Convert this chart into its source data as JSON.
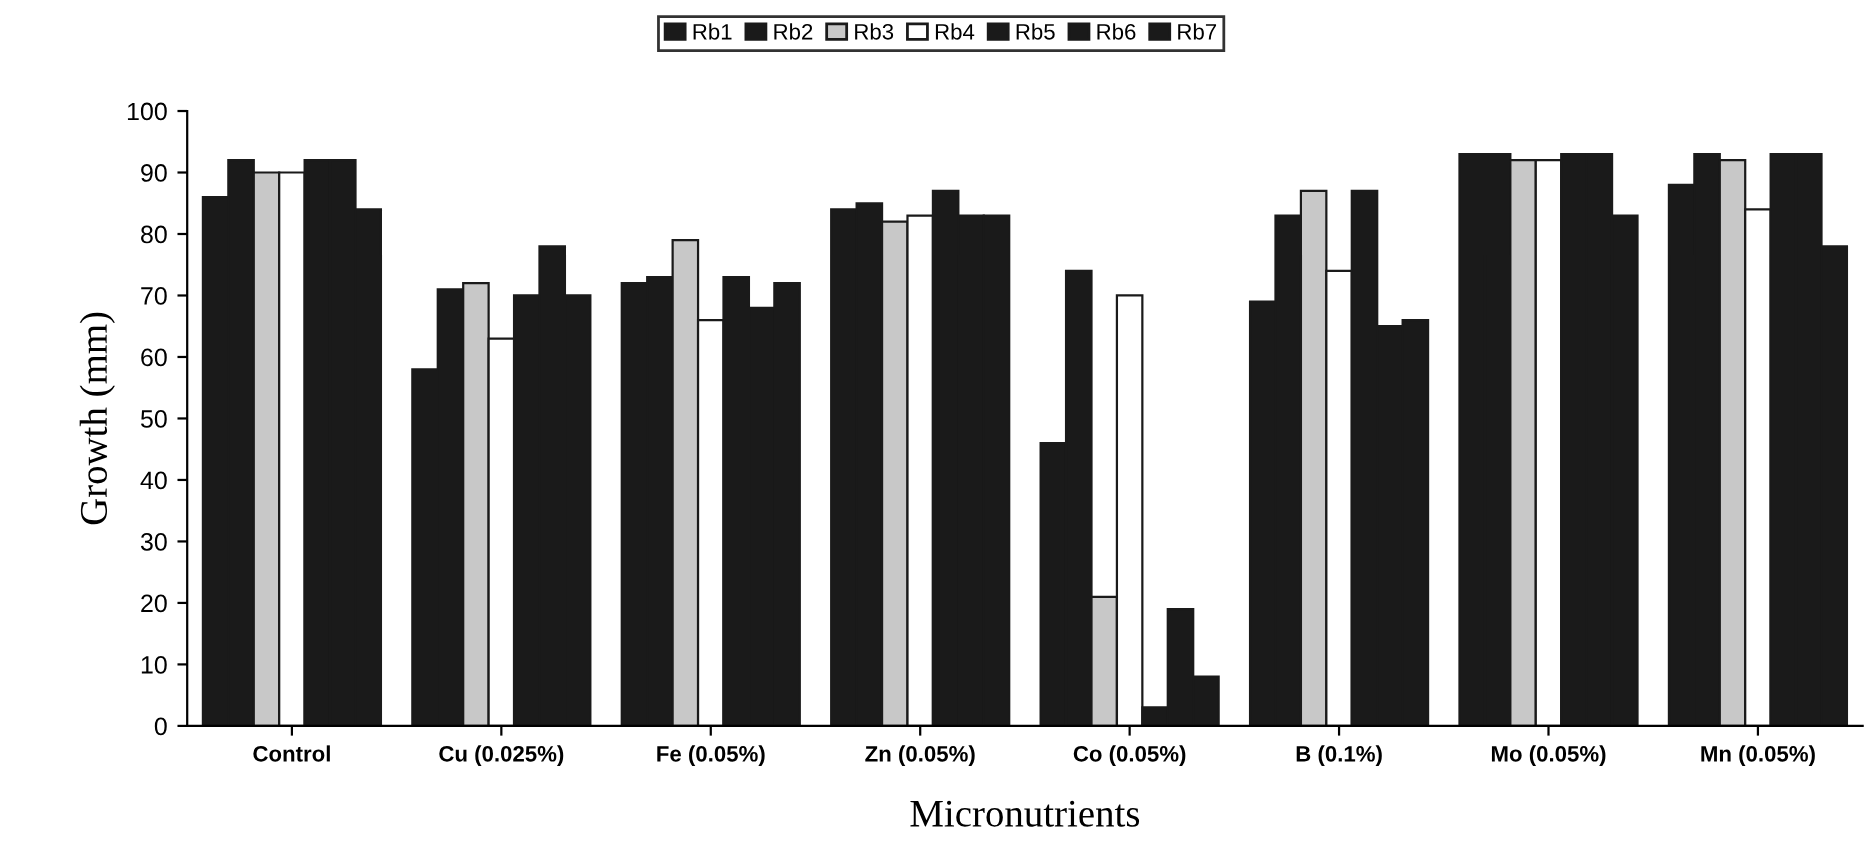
{
  "chart_data": {
    "type": "bar",
    "xlabel": "Micronutrients",
    "ylabel": "Growth (mm)",
    "categories": [
      "Control",
      "Cu (0.025%)",
      "Fe (0.05%)",
      "Zn (0.05%)",
      "Co (0.05%)",
      "B (0.1%)",
      "Mo (0.05%)",
      "Mn (0.05%)"
    ],
    "series": [
      {
        "name": "Rb1",
        "color": "#1a1a1a",
        "values": [
          86,
          58,
          72,
          84,
          46,
          69,
          93,
          88
        ]
      },
      {
        "name": "Rb2",
        "color": "#1a1a1a",
        "values": [
          92,
          71,
          73,
          85,
          74,
          83,
          93,
          93
        ]
      },
      {
        "name": "Rb3",
        "color": "#c8c8c8",
        "values": [
          90,
          72,
          79,
          82,
          21,
          87,
          92,
          92
        ]
      },
      {
        "name": "Rb4",
        "color": "#ffffff",
        "values": [
          90,
          63,
          66,
          83,
          70,
          74,
          92,
          84
        ]
      },
      {
        "name": "Rb5",
        "color": "#1a1a1a",
        "values": [
          92,
          70,
          73,
          87,
          3,
          87,
          93,
          93
        ]
      },
      {
        "name": "Rb6",
        "color": "#1a1a1a",
        "values": [
          92,
          78,
          68,
          83,
          19,
          65,
          93,
          93
        ]
      },
      {
        "name": "Rb7",
        "color": "#1a1a1a",
        "values": [
          84,
          70,
          72,
          83,
          8,
          66,
          83,
          78
        ]
      }
    ],
    "ylim": [
      0,
      100
    ],
    "yticks": [
      0,
      10,
      20,
      30,
      40,
      50,
      60,
      70,
      80,
      90,
      100
    ],
    "grid": false,
    "legend": "top"
  }
}
